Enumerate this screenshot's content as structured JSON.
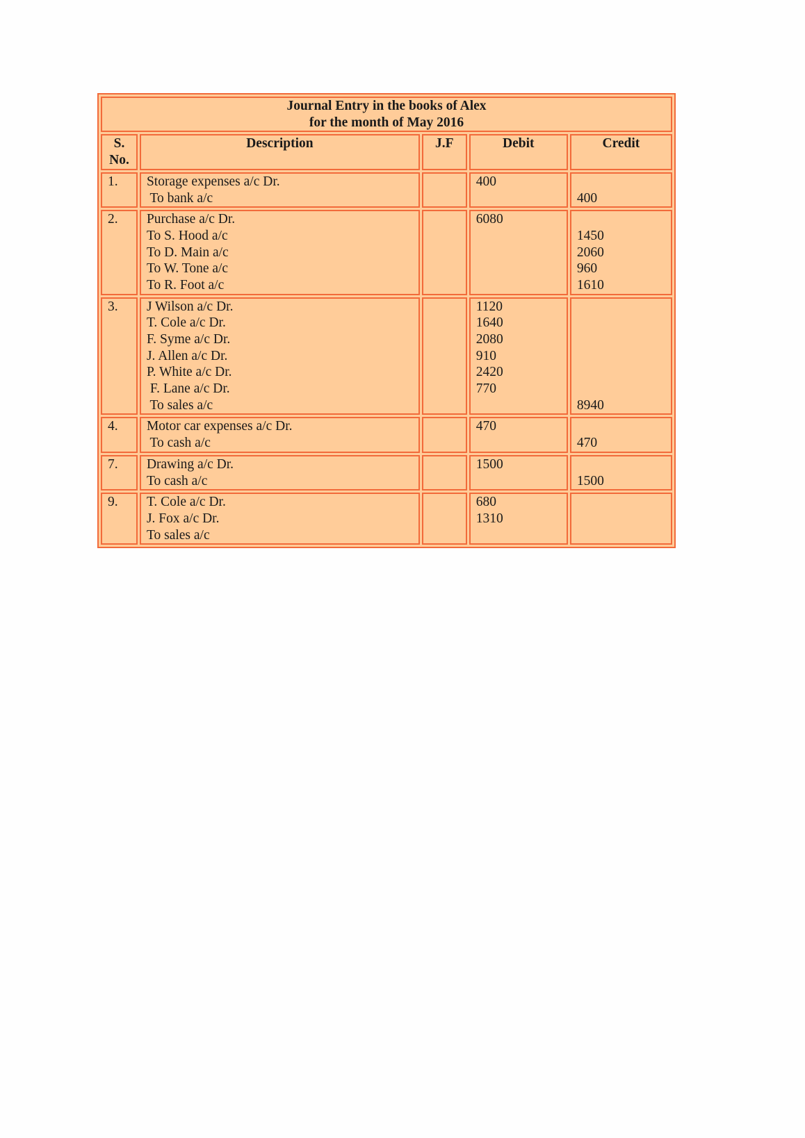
{
  "title": {
    "line1": "Journal Entry in the books of Alex",
    "line2": "for the month of May 2016"
  },
  "headers": {
    "sno_line1": "S.",
    "sno_line2": "No.",
    "description": "Description",
    "jf": "J.F",
    "debit": "Debit",
    "credit": "Credit"
  },
  "colors": {
    "cell_background": "#ffcc99",
    "border": "#f26a3a"
  },
  "rows": [
    {
      "sno": "1.",
      "description": [
        "Storage expenses a/c Dr.",
        " To bank a/c"
      ],
      "jf": "",
      "debit": [
        "400"
      ],
      "credit": [
        "",
        "400"
      ]
    },
    {
      "sno": "2.",
      "description": [
        "Purchase a/c Dr.",
        "To S. Hood a/c",
        "To D. Main a/c",
        "To W. Tone a/c",
        "To R. Foot a/c"
      ],
      "jf": "",
      "debit": [
        "6080"
      ],
      "credit": [
        "",
        "1450",
        "2060",
        "960",
        "1610"
      ]
    },
    {
      "sno": "3.",
      "description": [
        "J Wilson a/c Dr.",
        "T. Cole a/c Dr.",
        "F. Syme a/c Dr.",
        "J. Allen a/c Dr.",
        "P. White a/c Dr.",
        " F. Lane a/c Dr.",
        " To sales a/c"
      ],
      "jf": "",
      "debit": [
        "1120",
        "1640",
        "2080",
        "910",
        "2420",
        "770"
      ],
      "credit": [
        "",
        "",
        "",
        "",
        "",
        "",
        "8940"
      ]
    },
    {
      "sno": "4.",
      "description": [
        "Motor car expenses a/c Dr.",
        " To cash a/c"
      ],
      "jf": "",
      "debit": [
        "470"
      ],
      "credit": [
        "",
        "470"
      ]
    },
    {
      "sno": "7.",
      "description": [
        "Drawing a/c Dr.",
        "To cash a/c"
      ],
      "jf": "",
      "debit": [
        "1500"
      ],
      "credit": [
        "",
        "1500"
      ]
    },
    {
      "sno": "9.",
      "description": [
        "T. Cole a/c Dr.",
        "J. Fox a/c Dr.",
        "To sales a/c"
      ],
      "jf": "",
      "debit": [
        "680",
        "1310"
      ],
      "credit": []
    }
  ]
}
